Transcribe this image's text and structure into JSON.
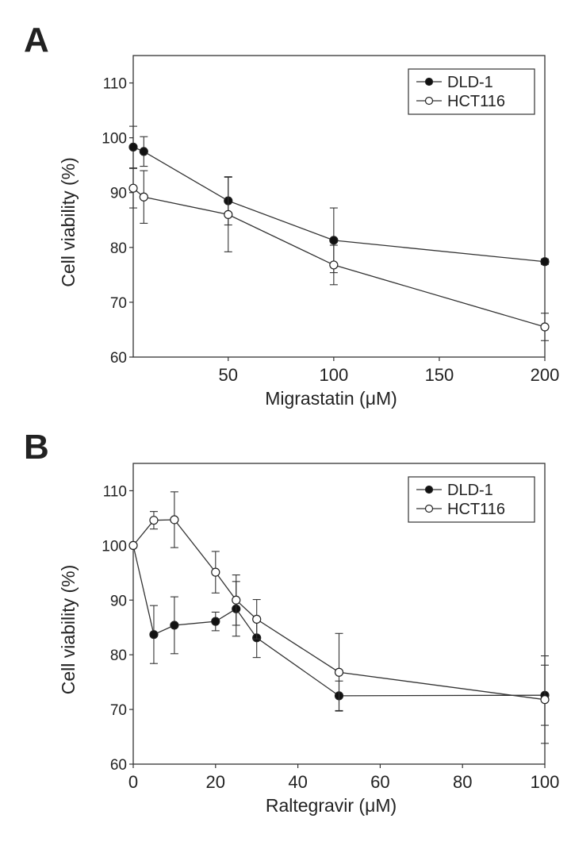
{
  "chart_data": [
    {
      "panel": "A",
      "type": "line",
      "title": "",
      "xlabel": "Migrastatin (μM)",
      "ylabel": "Cell viability (%)",
      "xlim": [
        5,
        200
      ],
      "ylim": [
        60,
        115
      ],
      "xticks": [
        50,
        100,
        150,
        200
      ],
      "yticks": [
        60,
        70,
        80,
        90,
        100,
        110
      ],
      "legend": "top-right",
      "series": [
        {
          "name": "DLD-1",
          "marker": "filled-circle",
          "x": [
            5,
            10,
            50,
            100,
            200
          ],
          "y": [
            98.3,
            97.5,
            88.5,
            81.3,
            77.4
          ],
          "err": [
            3.8,
            2.7,
            4.4,
            5.9,
            0.5
          ]
        },
        {
          "name": "HCT116",
          "marker": "open-circle",
          "x": [
            5,
            10,
            50,
            100,
            200
          ],
          "y": [
            90.8,
            89.2,
            86.0,
            76.8,
            65.5
          ],
          "err": [
            3.6,
            4.8,
            6.8,
            3.6,
            2.5
          ]
        }
      ]
    },
    {
      "panel": "B",
      "type": "line",
      "title": "",
      "xlabel": "Raltegravir (μM)",
      "ylabel": "Cell viability (%)",
      "xlim": [
        0,
        100
      ],
      "ylim": [
        60,
        115
      ],
      "xticks": [
        0,
        20,
        40,
        60,
        80,
        100
      ],
      "yticks": [
        60,
        70,
        80,
        90,
        100,
        110
      ],
      "legend": "top-right",
      "series": [
        {
          "name": "DLD-1",
          "marker": "filled-circle",
          "x": [
            0,
            5,
            10,
            20,
            25,
            30,
            50,
            100
          ],
          "y": [
            100,
            83.7,
            85.4,
            86.1,
            88.4,
            83.1,
            72.5,
            72.6
          ],
          "err": [
            0,
            5.3,
            5.2,
            1.7,
            5.0,
            3.6,
            2.7,
            5.5
          ]
        },
        {
          "name": "HCT116",
          "marker": "open-circle",
          "x": [
            0,
            5,
            10,
            20,
            25,
            30,
            50,
            100
          ],
          "y": [
            100,
            104.6,
            104.7,
            95.1,
            90.0,
            86.5,
            76.8,
            71.8
          ],
          "err": [
            0,
            1.6,
            5.1,
            3.8,
            4.6,
            3.6,
            7.1,
            8.0
          ]
        }
      ]
    }
  ]
}
